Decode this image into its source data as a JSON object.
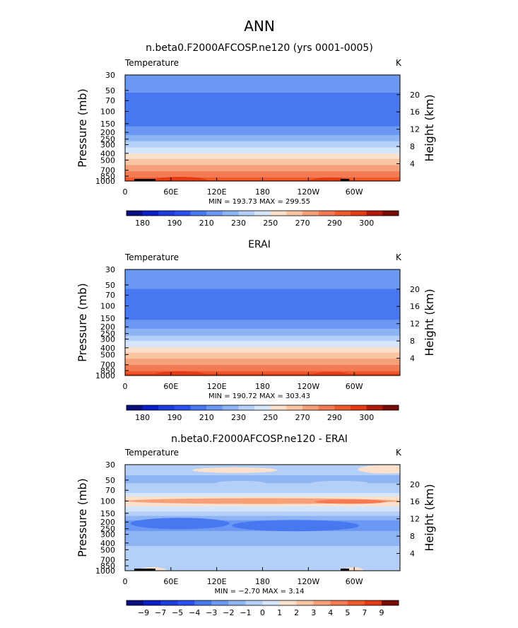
{
  "figure_title": "ANN",
  "chart_data": [
    {
      "type": "heatmap",
      "title": "n.beta0.F2000AFCOSP.ne120 (yrs 0001-0005)",
      "variable_label": "Temperature",
      "units_label": "K",
      "ylabel": "Pressure  (mb)",
      "y2label": "Height  (km)",
      "x_ticks": [
        "0",
        "60E",
        "120E",
        "180",
        "120W",
        "60W"
      ],
      "y_ticks": [
        "30",
        "50",
        "70",
        "100",
        "150",
        "200",
        "250",
        "300",
        "400",
        "500",
        "700",
        "850",
        "1000"
      ],
      "y2_ticks": [
        "20",
        "16",
        "12",
        "8",
        "4"
      ],
      "stats_text": "MIN = 193.73   MAX = 299.55",
      "min": 193.73,
      "max": 299.55,
      "colorbar_labels": [
        "180",
        "190",
        "210",
        "230",
        "250",
        "270",
        "290",
        "300"
      ],
      "profile": [
        {
          "p": 30,
          "v": 216
        },
        {
          "p": 50,
          "v": 211
        },
        {
          "p": 70,
          "v": 207
        },
        {
          "p": 100,
          "v": 201
        },
        {
          "p": 150,
          "v": 208
        },
        {
          "p": 200,
          "v": 216
        },
        {
          "p": 250,
          "v": 226
        },
        {
          "p": 300,
          "v": 235
        },
        {
          "p": 400,
          "v": 250
        },
        {
          "p": 500,
          "v": 262
        },
        {
          "p": 700,
          "v": 278
        },
        {
          "p": 850,
          "v": 288
        },
        {
          "p": 1000,
          "v": 296
        }
      ],
      "surface_features": [
        "pacific-warm"
      ],
      "topography": true
    },
    {
      "type": "heatmap",
      "title": "ERAI",
      "variable_label": "Temperature",
      "units_label": "K",
      "ylabel": "Pressure  (mb)",
      "y2label": "Height  (km)",
      "x_ticks": [
        "0",
        "60E",
        "120E",
        "180",
        "120W",
        "60W"
      ],
      "y_ticks": [
        "30",
        "50",
        "70",
        "100",
        "150",
        "200",
        "250",
        "300",
        "400",
        "500",
        "700",
        "850",
        "1000"
      ],
      "y2_ticks": [
        "20",
        "16",
        "12",
        "8",
        "4"
      ],
      "stats_text": "MIN = 190.72   MAX = 303.43",
      "min": 190.72,
      "max": 303.43,
      "colorbar_labels": [
        "180",
        "190",
        "210",
        "230",
        "250",
        "270",
        "290",
        "300"
      ],
      "profile": [
        {
          "p": 30,
          "v": 218
        },
        {
          "p": 50,
          "v": 212
        },
        {
          "p": 70,
          "v": 207
        },
        {
          "p": 100,
          "v": 201
        },
        {
          "p": 150,
          "v": 208
        },
        {
          "p": 200,
          "v": 217
        },
        {
          "p": 250,
          "v": 227
        },
        {
          "p": 300,
          "v": 236
        },
        {
          "p": 400,
          "v": 251
        },
        {
          "p": 500,
          "v": 263
        },
        {
          "p": 700,
          "v": 279
        },
        {
          "p": 850,
          "v": 289
        },
        {
          "p": 1000,
          "v": 298
        }
      ],
      "surface_features": [
        "africa-hot"
      ],
      "topography": false
    },
    {
      "type": "heatmap",
      "title": "n.beta0.F2000AFCOSP.ne120 - ERAI",
      "variable_label": "Temperature",
      "units_label": "K",
      "ylabel": "Pressure  (mb)",
      "y2label": "Height  (km)",
      "x_ticks": [
        "0",
        "60E",
        "120E",
        "180",
        "120W",
        "60W"
      ],
      "y_ticks": [
        "30",
        "50",
        "70",
        "100",
        "150",
        "200",
        "250",
        "300",
        "400",
        "500",
        "700",
        "850",
        "1000"
      ],
      "y2_ticks": [
        "20",
        "16",
        "12",
        "8",
        "4"
      ],
      "stats_text": "MIN = −2.70   MAX =   3.14",
      "min": -2.7,
      "max": 3.14,
      "colorbar_labels": [
        "−9",
        "−7",
        "−5",
        "−4",
        "−3",
        "−2",
        "−1",
        "0",
        "1",
        "2",
        "3",
        "4",
        "5",
        "7",
        "9"
      ],
      "profile": [
        {
          "p": 30,
          "v": -0.6
        },
        {
          "p": 50,
          "v": -1.2
        },
        {
          "p": 70,
          "v": -0.5
        },
        {
          "p": 85,
          "v": 0.8
        },
        {
          "p": 100,
          "v": 2.2
        },
        {
          "p": 120,
          "v": 0.9
        },
        {
          "p": 150,
          "v": -0.4
        },
        {
          "p": 200,
          "v": -2.4
        },
        {
          "p": 250,
          "v": -2.1
        },
        {
          "p": 300,
          "v": -1.8
        },
        {
          "p": 400,
          "v": -1.2
        },
        {
          "p": 500,
          "v": -0.8
        },
        {
          "p": 700,
          "v": -0.4
        },
        {
          "p": 850,
          "v": -0.5
        },
        {
          "p": 1000,
          "v": -0.6
        }
      ],
      "surface_features": [
        "diff-blobs"
      ],
      "topography": true
    }
  ],
  "abs_colorscale": {
    "levels": [
      180,
      185,
      190,
      200,
      210,
      220,
      230,
      240,
      250,
      260,
      270,
      280,
      290,
      295,
      300
    ],
    "colors": [
      "#0a0f80",
      "#0a1ec8",
      "#1e3cdc",
      "#2a50f0",
      "#4878f0",
      "#6a98f2",
      "#8eb4f4",
      "#b4d0f8",
      "#d6e6fa",
      "#fbe1cc",
      "#f8c4a2",
      "#f6a07a",
      "#f37a52",
      "#ef5a2d",
      "#e33a14",
      "#b01a0a",
      "#7a0a05"
    ]
  },
  "diff_colorscale": {
    "levels": [
      -9,
      -7,
      -5,
      -4,
      -3,
      -2,
      -1,
      0,
      1,
      2,
      3,
      4,
      5,
      7,
      9
    ],
    "colors": [
      "#0a0f80",
      "#0a1ec8",
      "#1e3cdc",
      "#2a50f0",
      "#4878f0",
      "#6a98f2",
      "#8eb4f4",
      "#b4d0f8",
      "#d6e6fa",
      "#fbe1cc",
      "#f8c4a2",
      "#f6a07a",
      "#f37a52",
      "#ef5a2d",
      "#e33a14",
      "#7a0a05"
    ]
  }
}
